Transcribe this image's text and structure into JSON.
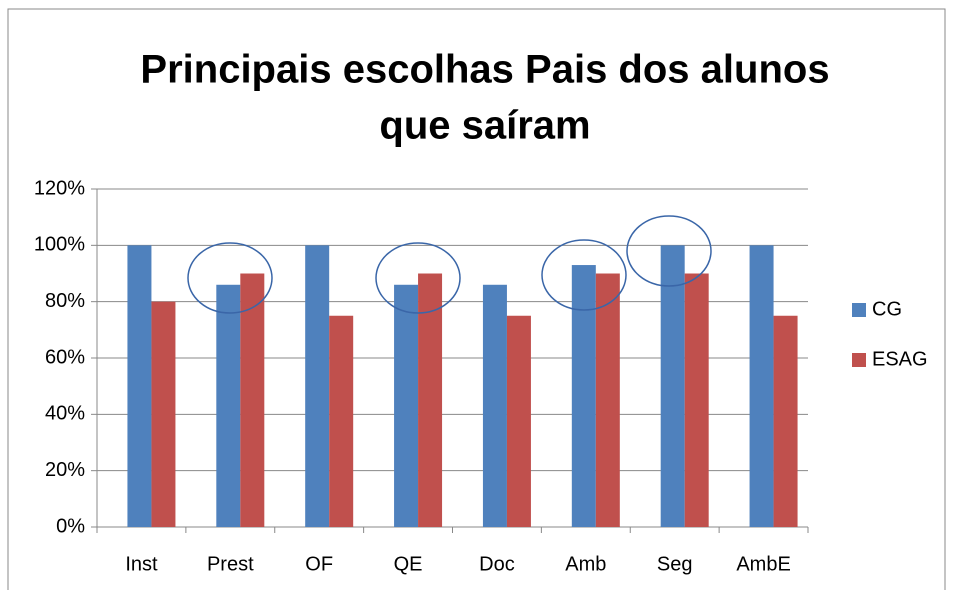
{
  "chart_data": {
    "type": "bar",
    "title": [
      "Principais escolhas Pais dos alunos",
      "que saíram"
    ],
    "categories": [
      "Inst",
      "Prest",
      "OF",
      "QE",
      "Doc",
      "Amb",
      "Seg",
      "AmbE"
    ],
    "series": [
      {
        "name": "CG",
        "color": "#4f81bd",
        "values": [
          100,
          86,
          100,
          86,
          86,
          93,
          100,
          100
        ]
      },
      {
        "name": "ESAG",
        "color": "#c0504d",
        "values": [
          80,
          90,
          75,
          90,
          75,
          90,
          90,
          75
        ]
      }
    ],
    "ylim": [
      0,
      120
    ],
    "yticks": [
      {
        "value": 0,
        "label": "0%"
      },
      {
        "value": 20,
        "label": "20%"
      },
      {
        "value": 40,
        "label": "40%"
      },
      {
        "value": 60,
        "label": "60%"
      },
      {
        "value": 80,
        "label": "80%"
      },
      {
        "value": 100,
        "label": "100%"
      },
      {
        "value": 120,
        "label": "120%"
      }
    ],
    "grid": true,
    "legend": "right"
  }
}
